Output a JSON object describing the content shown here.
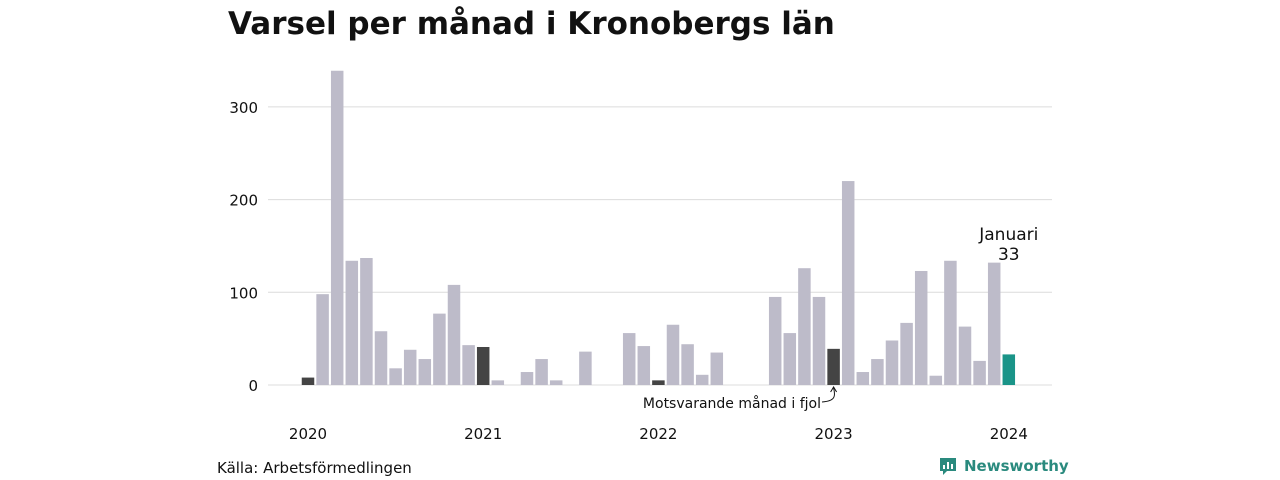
{
  "chart_data": {
    "type": "bar",
    "title": "Varsel per månad i Kronobergs län",
    "source": "Källa: Arbetsförmedlingen",
    "brand": "Newsworthy",
    "ylim": [
      0,
      340
    ],
    "yticks": [
      0,
      100,
      200,
      300
    ],
    "xticks": [
      {
        "label": "2020",
        "index": 0
      },
      {
        "label": "2021",
        "index": 12
      },
      {
        "label": "2022",
        "index": 24
      },
      {
        "label": "2023",
        "index": 36
      },
      {
        "label": "2024",
        "index": 48
      }
    ],
    "grid": true,
    "categories": [
      "2020-01",
      "2020-02",
      "2020-03",
      "2020-04",
      "2020-05",
      "2020-06",
      "2020-07",
      "2020-08",
      "2020-09",
      "2020-10",
      "2020-11",
      "2020-12",
      "2021-01",
      "2021-02",
      "2021-03",
      "2021-04",
      "2021-05",
      "2021-06",
      "2021-07",
      "2021-08",
      "2021-09",
      "2021-10",
      "2021-11",
      "2021-12",
      "2022-01",
      "2022-02",
      "2022-03",
      "2022-04",
      "2022-05",
      "2022-06",
      "2022-07",
      "2022-08",
      "2022-09",
      "2022-10",
      "2022-11",
      "2022-12",
      "2023-01",
      "2023-02",
      "2023-03",
      "2023-04",
      "2023-05",
      "2023-06",
      "2023-07",
      "2023-08",
      "2023-09",
      "2023-10",
      "2023-11",
      "2023-12",
      "2024-01"
    ],
    "values": [
      8,
      98,
      339,
      134,
      137,
      58,
      18,
      38,
      28,
      77,
      108,
      43,
      41,
      5,
      0,
      14,
      28,
      5,
      0,
      36,
      0,
      0,
      56,
      42,
      5,
      65,
      44,
      11,
      35,
      0,
      0,
      0,
      95,
      56,
      126,
      95,
      39,
      220,
      14,
      28,
      48,
      67,
      123,
      10,
      134,
      63,
      26,
      132,
      33
    ],
    "colors": {
      "default": "#bdbbc9",
      "january": "#444444",
      "current": "#1a9488",
      "grid": "#dcdcdc"
    },
    "annotations": {
      "current_label": "Januari",
      "current_value_label": "33",
      "previous_year_label": "Motsvarande månad i fjol"
    }
  }
}
